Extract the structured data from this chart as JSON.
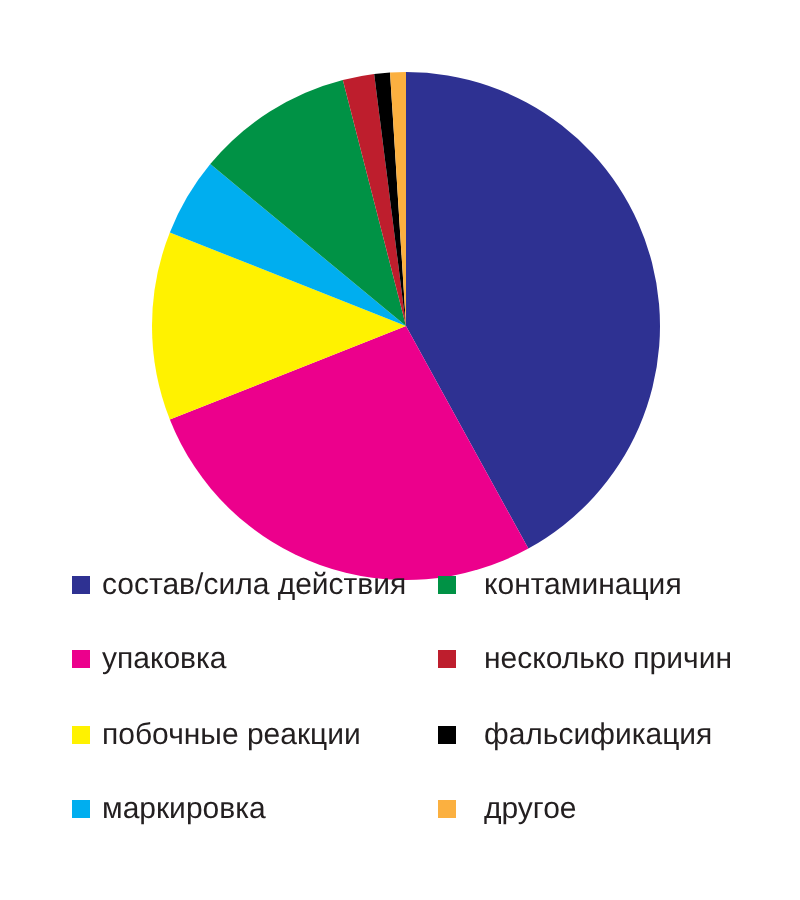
{
  "chart_data": {
    "type": "pie",
    "categories": [
      "состав/сила действия",
      "упаковка",
      "побочные реакции",
      "маркировка",
      "контаминация",
      "несколько причин",
      "фальсификация",
      "другое"
    ],
    "values": [
      42,
      27,
      12,
      5,
      10,
      2,
      1,
      1
    ],
    "colors": [
      "#2e3192",
      "#ec008c",
      "#fff200",
      "#00aeef",
      "#009245",
      "#be1e2d",
      "#000000",
      "#fbb040"
    ],
    "legend": "bottom"
  }
}
